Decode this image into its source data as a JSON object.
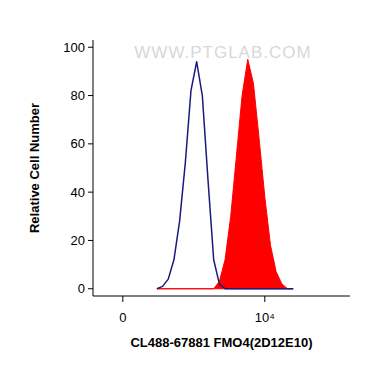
{
  "chart_data": {
    "type": "line",
    "x_label": "CL488-67881 FMO4(2D12E10)",
    "y_label": "Relative Cell Number",
    "annotations": [
      "WWW.PTGLAB.COM"
    ],
    "x": [
      2400,
      2800,
      3200,
      3600,
      4000,
      4400,
      4800,
      5200,
      5600,
      6000,
      6400,
      6800,
      7200,
      7600,
      8000,
      8400,
      8800,
      9200,
      9600,
      10000,
      10400,
      10800,
      11200,
      11600,
      12000
    ],
    "series": [
      {
        "type": "line",
        "color": "#1b1b7c",
        "values": [
          0,
          1,
          4,
          12,
          28,
          52,
          82,
          94,
          80,
          45,
          12,
          2,
          0,
          0,
          0,
          0,
          0,
          0,
          0,
          0,
          0,
          0,
          0,
          0,
          0
        ]
      },
      {
        "type": "area",
        "color": "#ff0000",
        "values": [
          0,
          0,
          0,
          0,
          0,
          0,
          0,
          0,
          0,
          0,
          0,
          3,
          12,
          30,
          55,
          80,
          95,
          85,
          62,
          38,
          18,
          7,
          2,
          0,
          0
        ]
      }
    ],
    "xlim": [
      -2100,
      16000
    ],
    "xticks": [
      {
        "value": 0,
        "label": "0"
      },
      {
        "value": 10000,
        "label": "10⁴"
      }
    ],
    "ylim": [
      -3,
      103
    ],
    "yticks": [
      0,
      20,
      40,
      60,
      80,
      100
    ],
    "grid": false
  }
}
